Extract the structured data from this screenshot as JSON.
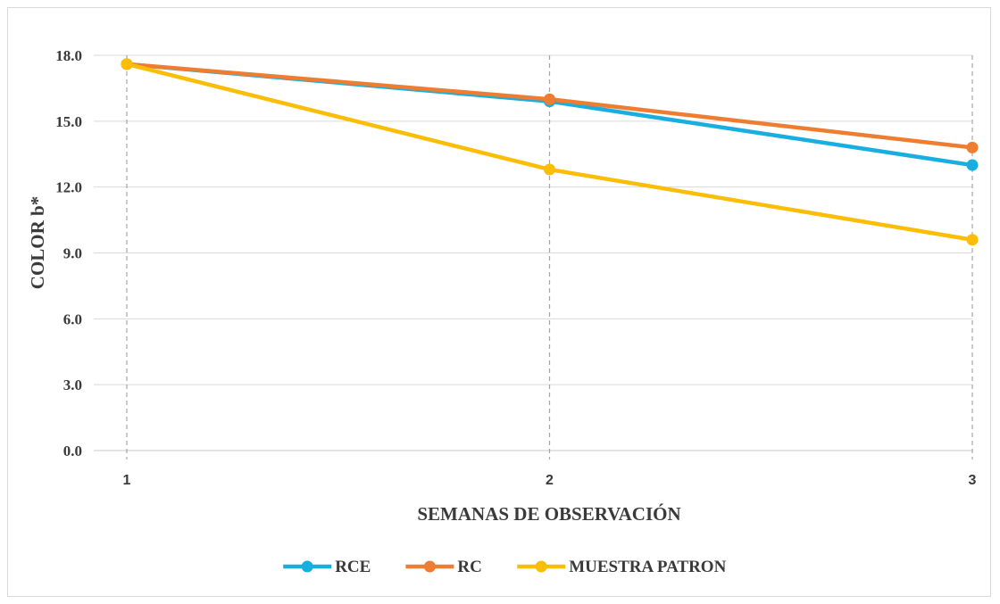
{
  "chart_data": {
    "type": "line",
    "title": "",
    "xlabel": "SEMANAS DE OBSERVACIÓN",
    "ylabel": "COLOR b*",
    "x": [
      "1",
      "2",
      "3"
    ],
    "ylim": [
      0,
      18
    ],
    "yticks": [
      "0.0",
      "3.0",
      "6.0",
      "9.0",
      "12.0",
      "15.0",
      "18.0"
    ],
    "grid": true,
    "legend_position": "bottom",
    "series": [
      {
        "name": "RCE",
        "color": "#19aee0",
        "values": [
          17.6,
          15.9,
          13.0
        ]
      },
      {
        "name": "RC",
        "color": "#ef7d31",
        "values": [
          17.6,
          16.0,
          13.8
        ]
      },
      {
        "name": "MUESTRA PATRON",
        "color": "#fbbd05",
        "values": [
          17.6,
          12.8,
          9.6
        ]
      }
    ]
  }
}
